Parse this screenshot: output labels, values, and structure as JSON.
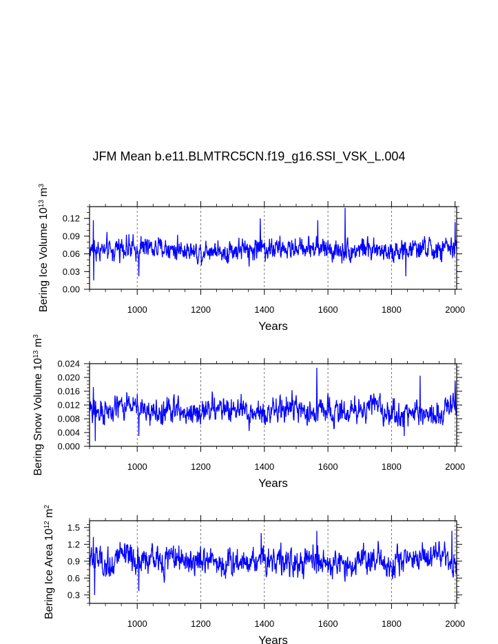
{
  "figure": {
    "title": "JFM Mean b.e11.BLMTRC5CN.f19_g16.SSI_VSK_L.004"
  },
  "chart_data": [
    {
      "type": "line",
      "title": "",
      "xlabel": "Years",
      "ylabel": {
        "text": "Bering Ice Volume 10",
        "sup": "13",
        "unit": " m",
        "unit_sup": "3"
      },
      "xlim": [
        850,
        2005
      ],
      "ylim": [
        0.0,
        0.14
      ],
      "xticks": [
        1000,
        1200,
        1400,
        1600,
        1800,
        2000
      ],
      "xtick_labels": [
        "1000",
        "1200",
        "1400",
        "1600",
        "1800",
        "2000"
      ],
      "yticks": [
        0.0,
        0.03,
        0.06,
        0.09,
        0.12
      ],
      "ytick_labels": [
        "0.00",
        "0.03",
        "0.06",
        "0.09",
        "0.12"
      ],
      "grid": "vertical dashed at major x ticks",
      "color": "#0000ff",
      "series": [
        {
          "name": "Bering Ice Volume",
          "x_start": 850,
          "x_end": 2005,
          "base": 0.068,
          "amplitude": 0.013,
          "range": [
            0.015,
            0.138
          ],
          "extremes": [
            [
              863,
              0.015
            ],
            [
              862,
              0.117
            ],
            [
              1387,
              0.12
            ],
            [
              1654,
              0.138
            ],
            [
              1568,
              0.117
            ],
            [
              1005,
              0.022
            ],
            [
              1845,
              0.022
            ],
            [
              2000,
              0.114
            ]
          ]
        }
      ]
    },
    {
      "type": "line",
      "title": "",
      "xlabel": "Years",
      "ylabel": {
        "text": "Bering Snow Volume 10",
        "sup": "13",
        "unit": " m",
        "unit_sup": "3"
      },
      "xlim": [
        850,
        2005
      ],
      "ylim": [
        0.0,
        0.024
      ],
      "xticks": [
        1000,
        1200,
        1400,
        1600,
        1800,
        2000
      ],
      "xtick_labels": [
        "1000",
        "1200",
        "1400",
        "1600",
        "1800",
        "2000"
      ],
      "yticks": [
        0.0,
        0.004,
        0.008,
        0.012,
        0.016,
        0.02,
        0.024
      ],
      "ytick_labels": [
        "0.000",
        "0.004",
        "0.008",
        "0.012",
        "0.016",
        "0.020",
        "0.024"
      ],
      "grid": "vertical dashed at major x ticks",
      "color": "#0000ff",
      "series": [
        {
          "name": "Bering Snow Volume",
          "x_start": 850,
          "x_end": 2005,
          "base": 0.0105,
          "amplitude": 0.0026,
          "range": [
            0.0015,
            0.0228
          ],
          "extremes": [
            [
              868,
              0.0015
            ],
            [
              862,
              0.0172
            ],
            [
              1565,
              0.0228
            ],
            [
              1890,
              0.0205
            ],
            [
              2000,
              0.019
            ],
            [
              1005,
              0.003
            ],
            [
              1840,
              0.003
            ]
          ]
        }
      ]
    },
    {
      "type": "line",
      "title": "",
      "xlabel": "Years",
      "ylabel": {
        "text": "Bering Ice Area 10",
        "sup": "12",
        "unit": " m",
        "unit_sup": "2"
      },
      "xlim": [
        850,
        2005
      ],
      "ylim": [
        0.15,
        1.62
      ],
      "xticks": [
        1000,
        1200,
        1400,
        1600,
        1800,
        2000
      ],
      "xtick_labels": [
        "1000",
        "1200",
        "1400",
        "1600",
        "1800",
        "2000"
      ],
      "yticks": [
        0.3,
        0.6,
        0.9,
        1.2,
        1.5
      ],
      "ytick_labels": [
        "0.3",
        "0.6",
        "0.9",
        "1.2",
        "1.5"
      ],
      "grid": "vertical dashed at major x ticks",
      "color": "#0000ff",
      "series": [
        {
          "name": "Bering Ice Area",
          "x_start": 850,
          "x_end": 2005,
          "base": 0.9,
          "amplitude": 0.17,
          "range": [
            0.3,
            1.44
          ],
          "extremes": [
            [
              866,
              0.3
            ],
            [
              862,
              1.33
            ],
            [
              1565,
              1.44
            ],
            [
              1990,
              1.44
            ],
            [
              1005,
              0.37
            ],
            [
              1390,
              1.4
            ]
          ]
        }
      ]
    }
  ]
}
